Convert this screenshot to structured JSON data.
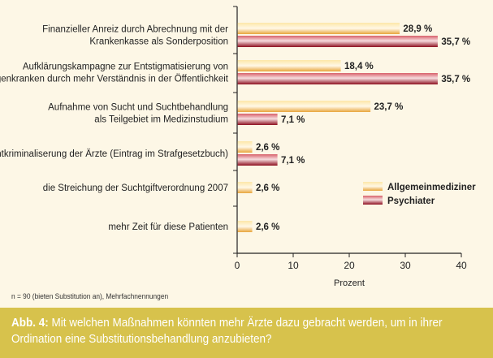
{
  "chart_data": {
    "type": "bar",
    "orientation": "horizontal",
    "categories": [
      [
        "Finanzieller Anreiz durch Abrechnung mit der",
        "Krankenkasse als Sonderposition"
      ],
      [
        "Aufklärungskampagne zur Entstigmatisierung von",
        "Drogenkranken durch mehr Verständnis in der Öffentlichkeit"
      ],
      [
        "Aufnahme von Sucht und Suchtbehandlung",
        "als Teilgebiet im Medizinstudium"
      ],
      [
        "die Entkriminaliserung der Ärzte (Eintrag im Strafgesetzbuch)"
      ],
      [
        "die Streichung der Suchtgiftverordnung 2007"
      ],
      [
        "mehr Zeit für diese Patienten"
      ]
    ],
    "series": [
      {
        "name": "Allgemeinmediziner",
        "values": [
          28.9,
          18.4,
          23.7,
          2.6,
          2.6,
          2.6
        ],
        "labels": [
          "28,9 %",
          "18,4 %",
          "23,7 %",
          "2,6 %",
          "2,6 %",
          "2,6 %"
        ],
        "color": "#f0b850"
      },
      {
        "name": "Psychiater",
        "values": [
          35.7,
          35.7,
          7.1,
          7.1,
          null,
          null
        ],
        "labels": [
          "35,7 %",
          "35,7 %",
          "7,1 %",
          "7,1 %",
          "",
          ""
        ],
        "color": "#b82030"
      }
    ],
    "xlabel": "Prozent",
    "xlim": [
      0,
      40
    ],
    "xticks": [
      "0",
      "10",
      "20",
      "30",
      "40"
    ],
    "legend_position": "right"
  },
  "note": "n = 90 (bieten Substitution an), Mehrfachnennungen",
  "caption": {
    "label": "Abb. 4:",
    "text": " Mit welchen Maßnahmen könnten mehr Ärzte dazu gebracht werden, um in ihrer Ordination eine Substitutionsbehandlung anzubieten?"
  }
}
